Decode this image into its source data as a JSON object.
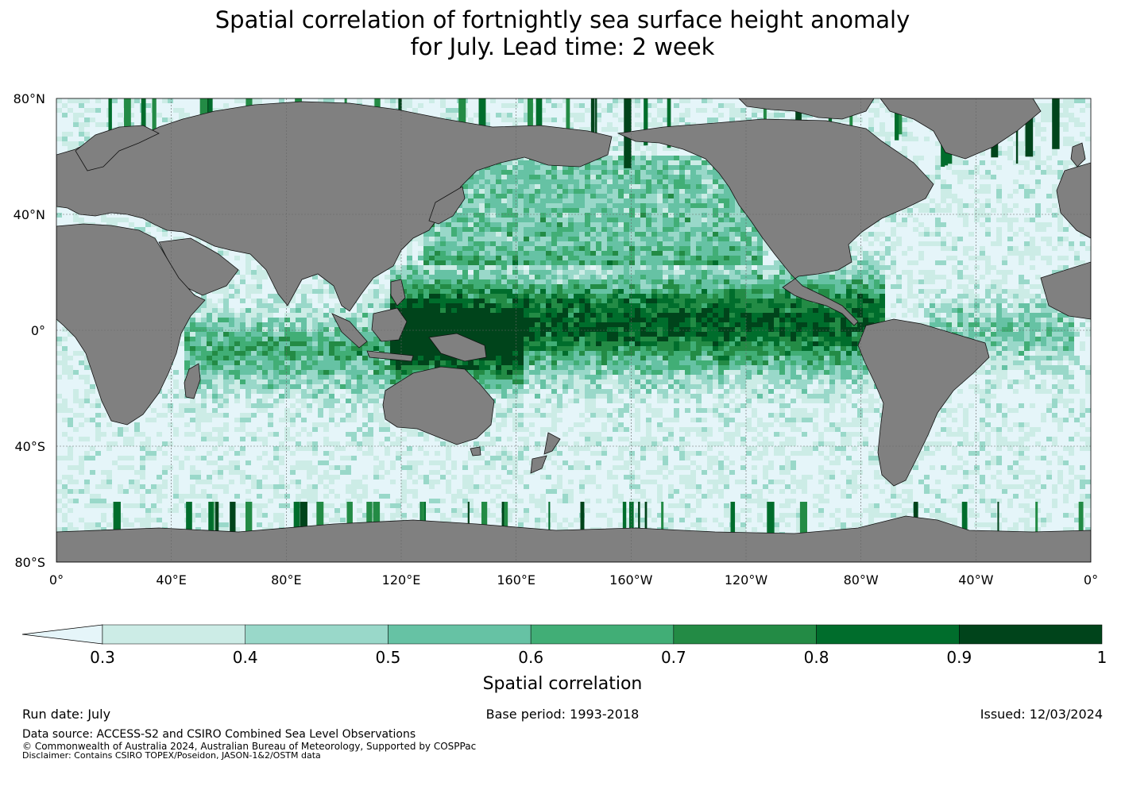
{
  "title": {
    "line1": "Spatial correlation of fortnightly sea surface height anomaly",
    "line2": "for July. Lead time: 2 week"
  },
  "map": {
    "projection": "plate-carree",
    "lon_ticks": [
      "0°",
      "40°E",
      "80°E",
      "120°E",
      "160°E",
      "160°W",
      "120°W",
      "80°W",
      "40°W",
      "0°"
    ],
    "lat_ticks": [
      "80°N",
      "40°N",
      "0°",
      "40°S",
      "80°S"
    ],
    "land_color": "#808080",
    "ocean_low_color": "#e5f5f9",
    "grid": true
  },
  "chart_data": {
    "type": "heatmap",
    "variable": "Spatial correlation",
    "levels": [
      0.3,
      0.4,
      0.5,
      0.6,
      0.7,
      0.8,
      0.9,
      1
    ],
    "colors": [
      "#e5f5f9",
      "#ccece6",
      "#99d8c9",
      "#66c2a4",
      "#41ae76",
      "#238b45",
      "#006d2c",
      "#00441b"
    ],
    "extend": "min"
  },
  "colorbar": {
    "label": "Spatial correlation",
    "tick_labels": [
      "0.3",
      "0.4",
      "0.5",
      "0.6",
      "0.7",
      "0.8",
      "0.9",
      "1"
    ]
  },
  "footer": {
    "run_date": "Run date: July",
    "base_period": "Base period: 1993-2018",
    "issued": "Issued: 12/03/2024",
    "data_source": "Data source: ACCESS-S2 and CSIRO Combined Sea Level Observations",
    "copyright": "© Commonwealth of Australia 2024, Australian Bureau of Meteorology, Supported by COSPPac",
    "disclaimer": "Disclaimer: Contains CSIRO TOPEX/Poseidon, JASON-1&2/OSTM data"
  }
}
